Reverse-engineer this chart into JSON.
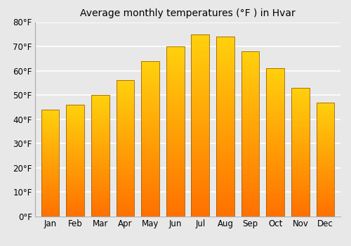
{
  "months": [
    "Jan",
    "Feb",
    "Mar",
    "Apr",
    "May",
    "Jun",
    "Jul",
    "Aug",
    "Sep",
    "Oct",
    "Nov",
    "Dec"
  ],
  "values": [
    44,
    46,
    50,
    56,
    64,
    70,
    75,
    74,
    68,
    61,
    53,
    47
  ],
  "title": "Average monthly temperatures (°F ) in Hvar",
  "ylim": [
    0,
    80
  ],
  "yticks": [
    0,
    10,
    20,
    30,
    40,
    50,
    60,
    70,
    80
  ],
  "ytick_labels": [
    "0°F",
    "10°F",
    "20°F",
    "30°F",
    "40°F",
    "50°F",
    "60°F",
    "70°F",
    "80°F"
  ],
  "background_color": "#e8e8e8",
  "plot_bg_color": "#e8e8e8",
  "grid_color": "#ffffff",
  "bar_color_bright": "#FFB300",
  "bar_color_dark": "#E07000",
  "bar_edge_color": "#a06000",
  "title_fontsize": 10,
  "tick_fontsize": 8.5,
  "bar_width": 0.72
}
